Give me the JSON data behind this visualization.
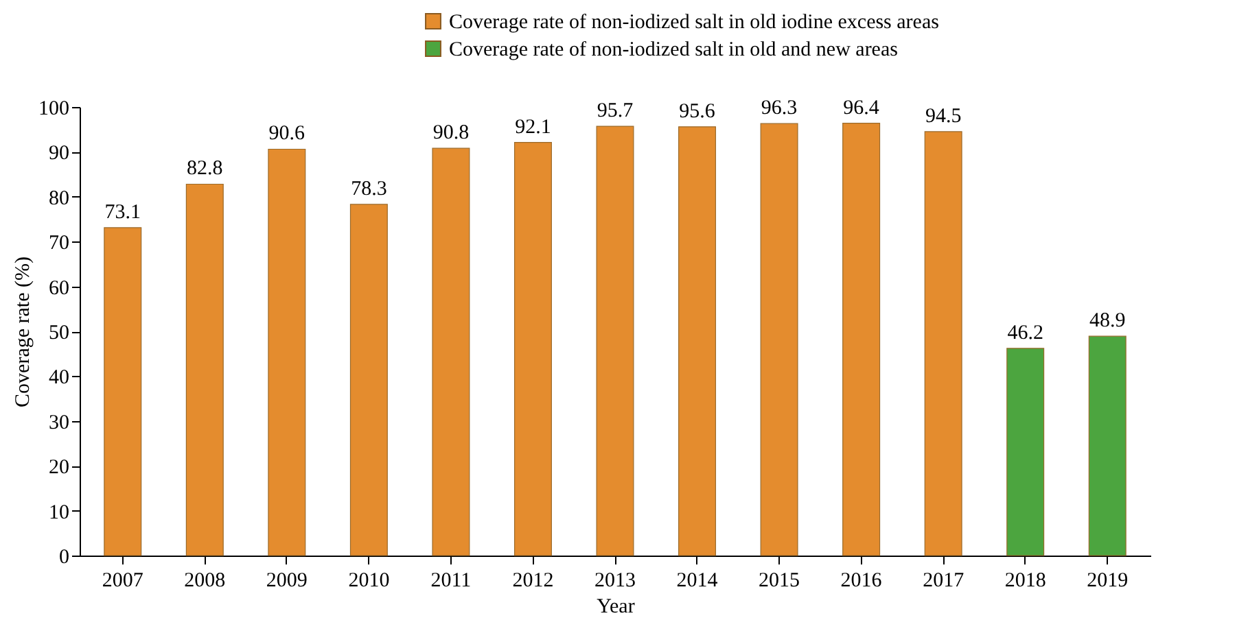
{
  "chart_data": {
    "type": "bar",
    "xlabel": "Year",
    "ylabel": "Coverage rate (%)",
    "categories": [
      "2007",
      "2008",
      "2009",
      "2010",
      "2011",
      "2012",
      "2013",
      "2014",
      "2015",
      "2016",
      "2017",
      "2018",
      "2019"
    ],
    "series": [
      {
        "name": "Coverage rate of non-iodized salt in old iodine excess areas",
        "color": "#e48c2e",
        "values": [
          73.1,
          82.8,
          90.6,
          78.3,
          90.8,
          92.1,
          95.7,
          95.6,
          96.3,
          96.4,
          94.5,
          null,
          null
        ]
      },
      {
        "name": "Coverage rate of non-iodized salt in old and new areas",
        "color": "#4ca53f",
        "values": [
          null,
          null,
          null,
          null,
          null,
          null,
          null,
          null,
          null,
          null,
          null,
          46.2,
          48.9
        ]
      }
    ],
    "ylim": [
      0,
      100
    ],
    "yticks": [
      0,
      10,
      20,
      30,
      40,
      50,
      60,
      70,
      80,
      90,
      100
    ],
    "grid": false,
    "legend": "top right",
    "data_labels": true
  }
}
